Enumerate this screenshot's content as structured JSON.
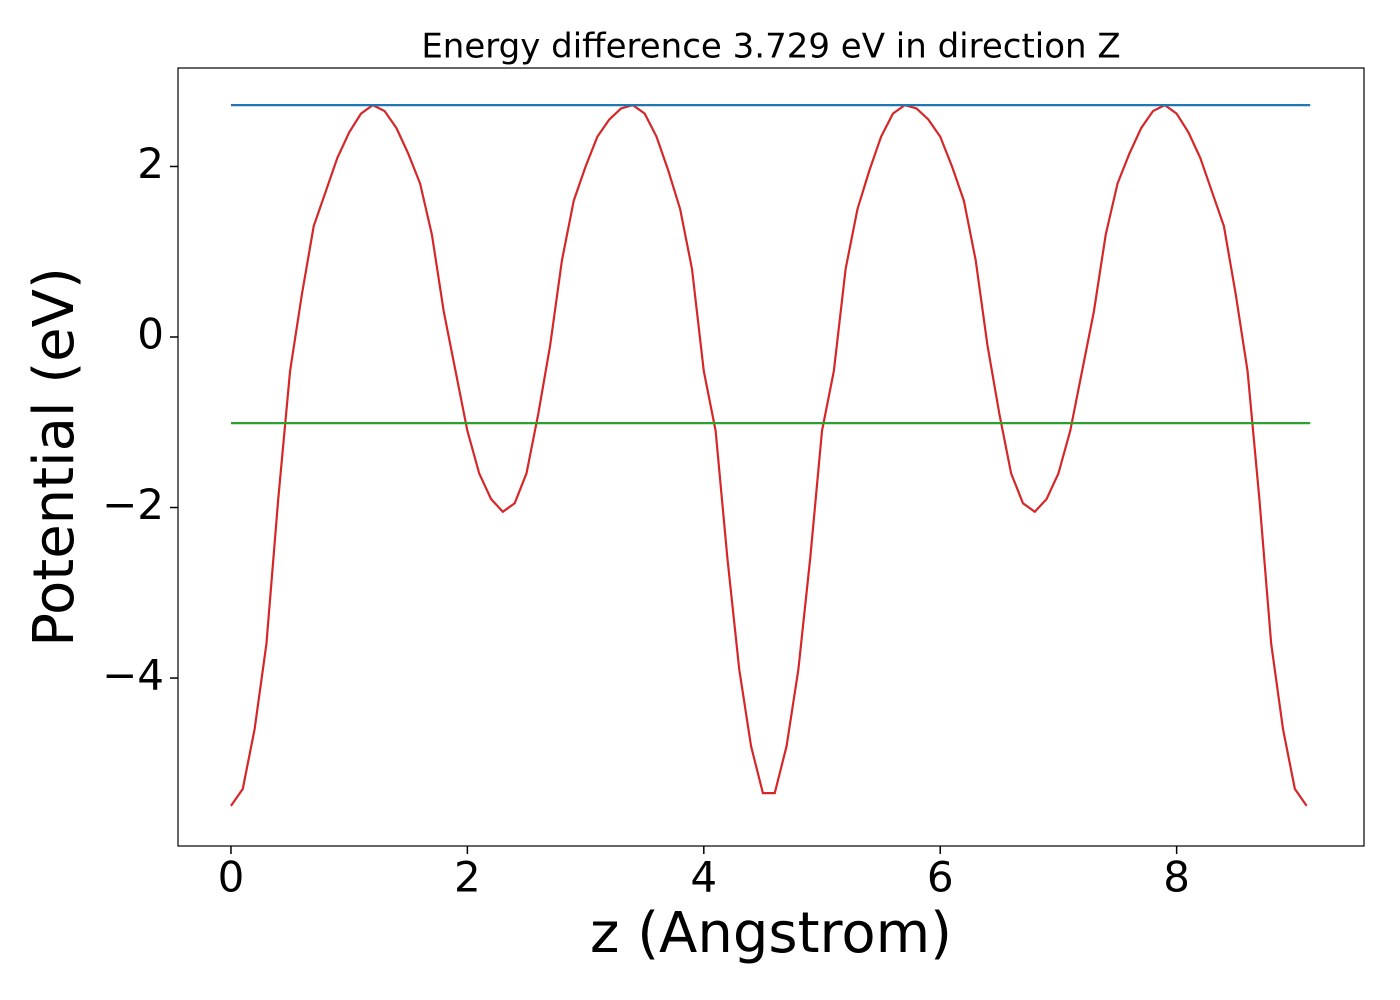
{
  "chart_data": {
    "type": "line",
    "title": "Energy difference 3.729 eV in direction Z",
    "xlabel": "z (Angstrom)",
    "ylabel": "Potential (eV)",
    "xlim": [
      -0.448,
      9.585
    ],
    "ylim": [
      -5.97,
      3.155
    ],
    "xticks": [
      0,
      2,
      4,
      6,
      8
    ],
    "yticks": [
      {
        "value": -4,
        "label": "−4"
      },
      {
        "value": -2,
        "label": "−2"
      },
      0,
      2
    ],
    "series": [
      {
        "color": "#d62728",
        "x": [
          0,
          0.1,
          0.2,
          0.3,
          0.4,
          0.5,
          0.6,
          0.7,
          0.8,
          0.9,
          1.0,
          1.1,
          1.2,
          1.3,
          1.4,
          1.5,
          1.6,
          1.7,
          1.8,
          1.9,
          2.0,
          2.1,
          2.2,
          2.3,
          2.4,
          2.5,
          2.6,
          2.7,
          2.8,
          2.9,
          3.0,
          3.1,
          3.2,
          3.3,
          3.4,
          3.5,
          3.6,
          3.7,
          3.8,
          3.9,
          4.0,
          4.1,
          4.2,
          4.3,
          4.4,
          4.5,
          4.6,
          4.7,
          4.8,
          4.9,
          5.0,
          5.1,
          5.2,
          5.3,
          5.4,
          5.5,
          5.6,
          5.7,
          5.8,
          5.9,
          6.0,
          6.1,
          6.2,
          6.3,
          6.4,
          6.5,
          6.6,
          6.7,
          6.8,
          6.9,
          7.0,
          7.1,
          7.2,
          7.3,
          7.4,
          7.5,
          7.6,
          7.7,
          7.8,
          7.9,
          8.0,
          8.1,
          8.2,
          8.3,
          8.4,
          8.5,
          8.6,
          8.7,
          8.8,
          8.9,
          9.0,
          9.1
        ],
        "values": [
          -5.5,
          -5.3,
          -4.6,
          -3.6,
          -1.9,
          -0.4,
          0.5,
          1.3,
          1.7,
          2.1,
          2.4,
          2.62,
          2.72,
          2.65,
          2.45,
          2.15,
          1.8,
          1.2,
          0.3,
          -0.4,
          -1.1,
          -1.6,
          -1.9,
          -2.05,
          -1.95,
          -1.6,
          -0.9,
          -0.1,
          0.9,
          1.6,
          2.0,
          2.35,
          2.55,
          2.68,
          2.72,
          2.62,
          2.35,
          1.95,
          1.5,
          0.8,
          -0.4,
          -1.1,
          -2.6,
          -3.9,
          -4.8,
          -5.35,
          -5.35,
          -4.8,
          -3.9,
          -2.6,
          -1.1,
          -0.4,
          0.8,
          1.5,
          1.95,
          2.35,
          2.62,
          2.72,
          2.68,
          2.55,
          2.35,
          2.0,
          1.6,
          0.9,
          -0.1,
          -0.9,
          -1.6,
          -1.95,
          -2.05,
          -1.9,
          -1.6,
          -1.1,
          -0.4,
          0.3,
          1.2,
          1.8,
          2.15,
          2.45,
          2.65,
          2.72,
          2.62,
          2.4,
          2.1,
          1.7,
          1.3,
          0.5,
          -0.4,
          -1.9,
          -3.6,
          -4.6,
          -5.3,
          -5.5
        ]
      },
      {
        "color": "#1f77b4",
        "x": [
          0,
          9.13
        ],
        "values": [
          2.72,
          2.72
        ]
      },
      {
        "color": "#2ca02c",
        "x": [
          0,
          9.13
        ],
        "values": [
          -1.01,
          -1.01
        ]
      }
    ]
  }
}
